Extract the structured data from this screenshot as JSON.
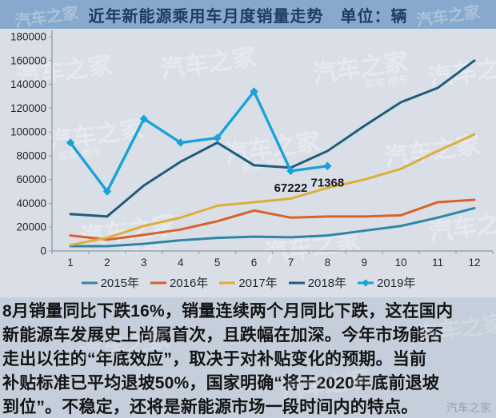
{
  "title": "近年新能源乘用车月度销量走势　单位：辆",
  "watermark": {
    "brand": "汽车之家",
    "sub": "买车 用车",
    "footer": "汽车之家"
  },
  "article": {
    "paragraph": "8月销量同比下跌16%，销量连续两个月同比下跌，这在国内\n新能源车发展史上尚属首次，且跌幅在加深。今年市场能否\n走出以往的“年底效应”，取决于对补贴变化的预期。当前\n补贴标准已平均退坡50%，国家明确“将于2020年底前退坡\n到位”。不稳定，还将是新能源市场一段时间内的特点。"
  },
  "chart_data": {
    "type": "line",
    "title": "近年新能源乘用车月度销量走势",
    "unit_label": "单位：辆",
    "categories": [
      "1",
      "2",
      "3",
      "4",
      "5",
      "6",
      "7",
      "8",
      "9",
      "10",
      "11",
      "12"
    ],
    "ylim": [
      0,
      180000
    ],
    "y_ticks": [
      180000,
      160000,
      140000,
      120000,
      100000,
      80000,
      60000,
      40000,
      20000,
      0
    ],
    "grid": false,
    "legend_position": "bottom",
    "series": [
      {
        "name": "2015年",
        "color": "#2e86a6",
        "values": [
          4000,
          4000,
          6000,
          9000,
          11000,
          12000,
          11500,
          13000,
          17000,
          21000,
          28000,
          36000
        ]
      },
      {
        "name": "2016年",
        "color": "#d8622a",
        "values": [
          13000,
          9500,
          13500,
          18000,
          25000,
          34000,
          28000,
          29000,
          29000,
          30000,
          41000,
          43000
        ]
      },
      {
        "name": "2017年",
        "color": "#ddad3b",
        "values": [
          5000,
          11000,
          21000,
          28000,
          38000,
          41000,
          44000,
          53000,
          60000,
          69000,
          84000,
          98000
        ]
      },
      {
        "name": "2018年",
        "color": "#1d5d7b",
        "values": [
          31000,
          29000,
          55000,
          75000,
          91000,
          72000,
          70000,
          84000,
          105000,
          125000,
          137000,
          160000
        ]
      },
      {
        "name": "2019年",
        "color": "#18a3d8",
        "marker": "diamond",
        "values": [
          91000,
          50000,
          111000,
          91000,
          95000,
          134000,
          67222,
          71368
        ]
      }
    ],
    "annotations": [
      {
        "text": "67222",
        "month": 7,
        "value": 67222
      },
      {
        "text": "71368",
        "month": 8,
        "value": 71368
      }
    ]
  },
  "colors": {
    "title_bg": "#87a9cd",
    "title_text": "#1d3c63",
    "chart_bg": "#dadfe7",
    "text_bg": "#c4cfdb",
    "axis": "#97a2ad",
    "tick_text": "#26262a",
    "annotation_text": "#16181c"
  }
}
